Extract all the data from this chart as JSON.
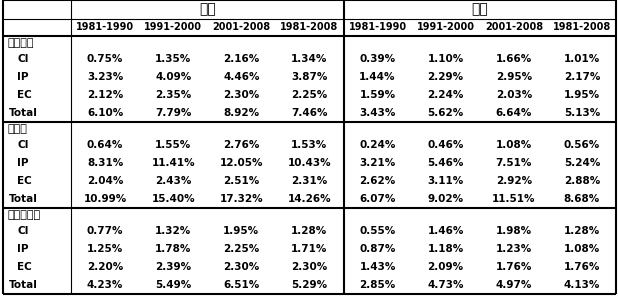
{
  "period_headers": [
    "1981-1990",
    "1991-2000",
    "2001-2008",
    "1981-2008"
  ],
  "sections": [
    {
      "name": "経済全体",
      "rows": [
        {
          "label": "CI",
          "jp": [
            "0.75%",
            "1.35%",
            "2.16%",
            "1.34%"
          ],
          "kr": [
            "0.39%",
            "1.10%",
            "1.66%",
            "1.01%"
          ]
        },
        {
          "label": "IP",
          "jp": [
            "3.23%",
            "4.09%",
            "4.46%",
            "3.87%"
          ],
          "kr": [
            "1.44%",
            "2.29%",
            "2.95%",
            "2.17%"
          ]
        },
        {
          "label": "EC",
          "jp": [
            "2.12%",
            "2.35%",
            "2.30%",
            "2.25%"
          ],
          "kr": [
            "1.59%",
            "2.24%",
            "2.03%",
            "1.95%"
          ]
        },
        {
          "label": "Total",
          "jp": [
            "6.10%",
            "7.79%",
            "8.92%",
            "7.46%"
          ],
          "kr": [
            "3.43%",
            "5.62%",
            "6.64%",
            "5.13%"
          ]
        }
      ]
    },
    {
      "name": "製造業",
      "rows": [
        {
          "label": "CI",
          "jp": [
            "0.64%",
            "1.55%",
            "2.76%",
            "1.53%"
          ],
          "kr": [
            "0.24%",
            "0.46%",
            "1.08%",
            "0.56%"
          ]
        },
        {
          "label": "IP",
          "jp": [
            "8.31%",
            "11.41%",
            "12.05%",
            "10.43%"
          ],
          "kr": [
            "3.21%",
            "5.46%",
            "7.51%",
            "5.24%"
          ]
        },
        {
          "label": "EC",
          "jp": [
            "2.04%",
            "2.43%",
            "2.51%",
            "2.31%"
          ],
          "kr": [
            "2.62%",
            "3.11%",
            "2.92%",
            "2.88%"
          ]
        },
        {
          "label": "Total",
          "jp": [
            "10.99%",
            "15.40%",
            "17.32%",
            "14.26%"
          ],
          "kr": [
            "6.07%",
            "9.02%",
            "11.51%",
            "8.68%"
          ]
        }
      ]
    },
    {
      "name": "サービス業",
      "rows": [
        {
          "label": "CI",
          "jp": [
            "0.77%",
            "1.32%",
            "1.95%",
            "1.28%"
          ],
          "kr": [
            "0.55%",
            "1.46%",
            "1.98%",
            "1.28%"
          ]
        },
        {
          "label": "IP",
          "jp": [
            "1.25%",
            "1.78%",
            "2.25%",
            "1.71%"
          ],
          "kr": [
            "0.87%",
            "1.18%",
            "1.23%",
            "1.08%"
          ]
        },
        {
          "label": "EC",
          "jp": [
            "2.20%",
            "2.39%",
            "2.30%",
            "2.30%"
          ],
          "kr": [
            "1.43%",
            "2.09%",
            "1.76%",
            "1.76%"
          ]
        },
        {
          "label": "Total",
          "jp": [
            "4.23%",
            "5.49%",
            "6.51%",
            "5.29%"
          ],
          "kr": [
            "2.85%",
            "4.73%",
            "4.97%",
            "4.13%"
          ]
        }
      ]
    }
  ],
  "bg_color": "#ffffff",
  "text_color": "#000000",
  "jp_header": "日本",
  "kr_header": "韓国",
  "figw": 6.18,
  "figh": 3.03,
  "dpi": 100
}
